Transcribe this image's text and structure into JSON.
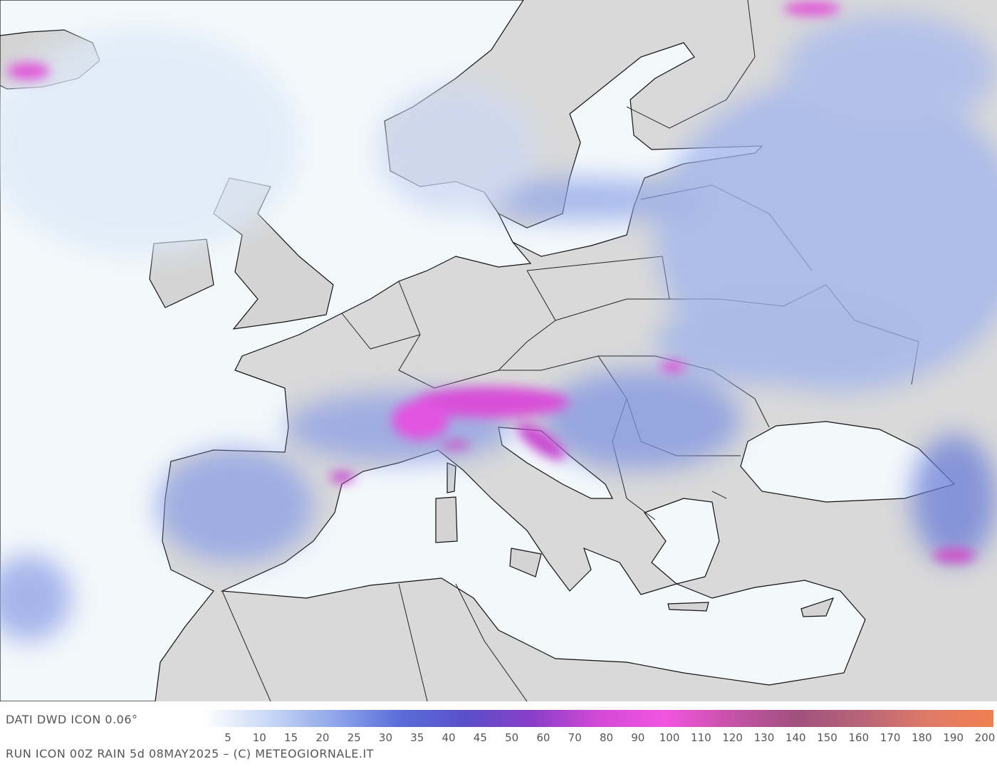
{
  "map": {
    "credit": "DATI DWD ICON 0.06°",
    "legend": {
      "ticks": [
        5,
        10,
        15,
        20,
        25,
        30,
        35,
        40,
        45,
        50,
        60,
        70,
        80,
        90,
        100,
        110,
        120,
        130,
        140,
        150,
        160,
        170,
        180,
        190,
        200
      ],
      "colors": [
        "#ffffff",
        "#c9d8f6",
        "#8fa6ea",
        "#5a6cd8",
        "#5b4fc8",
        "#8a3ec8",
        "#d24ad6",
        "#f255e0",
        "#c852a8",
        "#a0507e",
        "#b86478",
        "#e07a68",
        "#f08050"
      ]
    },
    "caption": "RUN ICON 00Z RAIN 5d 08MAY2025 – (C) METEOGIORNALE.IT"
  }
}
